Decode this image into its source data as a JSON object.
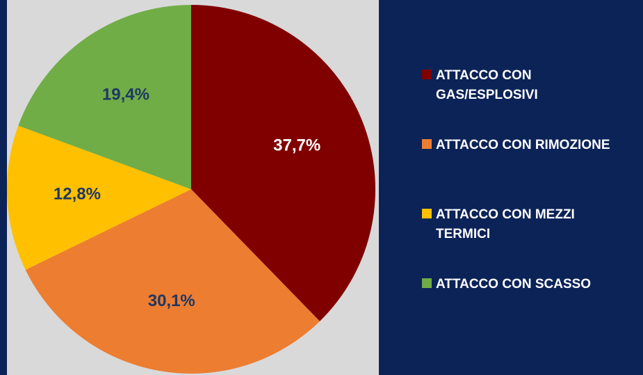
{
  "chart_data": {
    "type": "pie",
    "categories": [
      "ATTACCO CON GAS/ESPLOSIVI",
      "ATTACCO CON RIMOZIONE",
      "ATTACCO CON MEZZI TERMICI",
      "ATTACCO CON SCASSO"
    ],
    "values": [
      37.7,
      30.1,
      12.8,
      19.4
    ],
    "value_labels": [
      "37,7%",
      "30,1%",
      "12,8%",
      "19,4%"
    ],
    "colors": [
      "#800000",
      "#ed7d31",
      "#ffc000",
      "#70ad47"
    ],
    "legend": "right"
  }
}
